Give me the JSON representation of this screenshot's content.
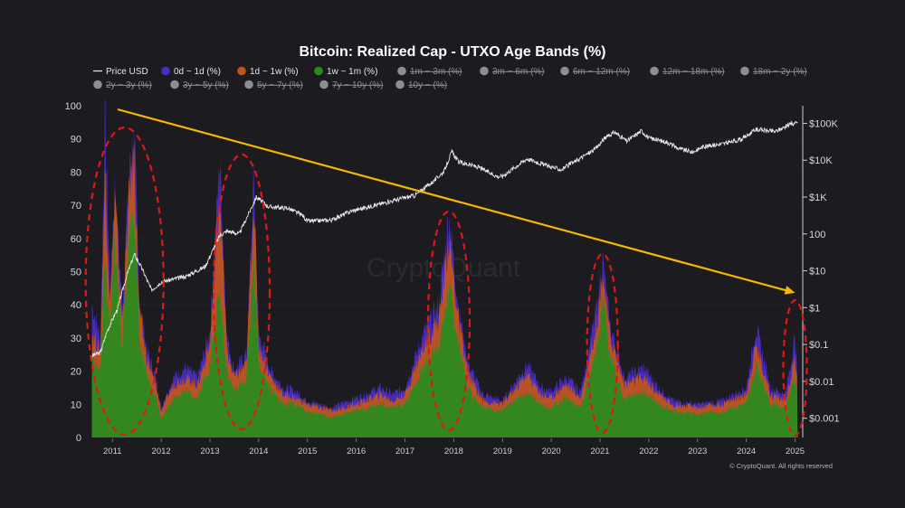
{
  "chart_data": {
    "type": "area",
    "title": "Bitcoin: Realized Cap - UTXO Age Bands (%)",
    "watermark": "CryptoQuant",
    "credit": "© CryptoQuant. All rights reserved",
    "x_ticks": [
      "2011",
      "2012",
      "2013",
      "2014",
      "2015",
      "2016",
      "2017",
      "2018",
      "2019",
      "2020",
      "2021",
      "2022",
      "2023",
      "2024",
      "2025"
    ],
    "y_left": {
      "ticks": [
        "0",
        "10",
        "20",
        "30",
        "40",
        "50",
        "60",
        "70",
        "80",
        "90",
        "100"
      ],
      "range": [
        0,
        100
      ]
    },
    "y_right": {
      "scale": "log",
      "ticks": [
        "$0.001",
        "$0.01",
        "$0.1",
        "$1",
        "$10",
        "100",
        "$1K",
        "$10K",
        "$100K"
      ],
      "range": [
        0.0003,
        300000
      ]
    },
    "legend": [
      {
        "name": "Price USD",
        "color": "#e0e0e0",
        "active": true,
        "kind": "line"
      },
      {
        "name": "0d ~ 1d (%)",
        "color": "#4a2cc0",
        "active": true,
        "kind": "dot"
      },
      {
        "name": "1d ~ 1w (%)",
        "color": "#c0551c",
        "active": true,
        "kind": "dot"
      },
      {
        "name": "1w ~ 1m (%)",
        "color": "#2c8a1e",
        "active": true,
        "kind": "dot"
      },
      {
        "name": "1m ~ 3m (%)",
        "color": "#8d8d93",
        "active": false,
        "kind": "dot"
      },
      {
        "name": "3m ~ 6m (%)",
        "color": "#8d8d93",
        "active": false,
        "kind": "dot"
      },
      {
        "name": "6m ~ 12m (%)",
        "color": "#8d8d93",
        "active": false,
        "kind": "dot"
      },
      {
        "name": "12m ~ 18m (%)",
        "color": "#8d8d93",
        "active": false,
        "kind": "dot"
      },
      {
        "name": "18m ~ 2y (%)",
        "color": "#8d8d93",
        "active": false,
        "kind": "dot"
      },
      {
        "name": "2y ~ 3y (%)",
        "color": "#8d8d93",
        "active": false,
        "kind": "dot"
      },
      {
        "name": "3y ~ 5y (%)",
        "color": "#8d8d93",
        "active": false,
        "kind": "dot"
      },
      {
        "name": "5y ~ 7y (%)",
        "color": "#8d8d93",
        "active": false,
        "kind": "dot"
      },
      {
        "name": "7y ~ 10y (%)",
        "color": "#8d8d93",
        "active": false,
        "kind": "dot"
      },
      {
        "name": "10y ~ (%)",
        "color": "#8d8d93",
        "active": false,
        "kind": "dot"
      }
    ],
    "series": [
      {
        "name": "1w ~ 1m (%)",
        "color": "#2c8a1e",
        "points": [
          [
            2010.58,
            25
          ],
          [
            2010.75,
            20
          ],
          [
            2010.85,
            55
          ],
          [
            2010.95,
            30
          ],
          [
            2011.05,
            60
          ],
          [
            2011.2,
            28
          ],
          [
            2011.35,
            62
          ],
          [
            2011.45,
            70
          ],
          [
            2011.55,
            30
          ],
          [
            2011.7,
            18
          ],
          [
            2011.9,
            12
          ],
          [
            2012.0,
            6
          ],
          [
            2012.25,
            12
          ],
          [
            2012.5,
            14
          ],
          [
            2012.75,
            12
          ],
          [
            2013.0,
            22
          ],
          [
            2013.2,
            45
          ],
          [
            2013.35,
            20
          ],
          [
            2013.5,
            14
          ],
          [
            2013.75,
            18
          ],
          [
            2013.9,
            55
          ],
          [
            2014.0,
            22
          ],
          [
            2014.25,
            14
          ],
          [
            2014.5,
            10
          ],
          [
            2014.75,
            10
          ],
          [
            2015.0,
            8
          ],
          [
            2015.5,
            6
          ],
          [
            2016.0,
            8
          ],
          [
            2016.5,
            10
          ],
          [
            2016.75,
            9
          ],
          [
            2017.0,
            10
          ],
          [
            2017.4,
            22
          ],
          [
            2017.7,
            28
          ],
          [
            2017.9,
            45
          ],
          [
            2018.1,
            28
          ],
          [
            2018.3,
            15
          ],
          [
            2018.6,
            9
          ],
          [
            2019.0,
            8
          ],
          [
            2019.5,
            14
          ],
          [
            2019.8,
            10
          ],
          [
            2020.0,
            9
          ],
          [
            2020.3,
            12
          ],
          [
            2020.6,
            9
          ],
          [
            2020.95,
            28
          ],
          [
            2021.05,
            42
          ],
          [
            2021.2,
            25
          ],
          [
            2021.5,
            12
          ],
          [
            2021.9,
            14
          ],
          [
            2022.2,
            10
          ],
          [
            2022.5,
            8
          ],
          [
            2023.0,
            7
          ],
          [
            2023.5,
            8
          ],
          [
            2024.0,
            10
          ],
          [
            2024.2,
            22
          ],
          [
            2024.5,
            10
          ],
          [
            2024.8,
            9
          ],
          [
            2025.0,
            18
          ],
          [
            2025.05,
            14
          ]
        ]
      },
      {
        "name": "1d ~ 1w (%)",
        "color": "#c0551c",
        "points": [
          [
            2010.58,
            32
          ],
          [
            2010.75,
            25
          ],
          [
            2010.85,
            80
          ],
          [
            2010.95,
            40
          ],
          [
            2011.05,
            72
          ],
          [
            2011.2,
            35
          ],
          [
            2011.35,
            75
          ],
          [
            2011.45,
            85
          ],
          [
            2011.55,
            38
          ],
          [
            2011.7,
            24
          ],
          [
            2011.9,
            15
          ],
          [
            2012.0,
            8
          ],
          [
            2012.25,
            16
          ],
          [
            2012.5,
            18
          ],
          [
            2012.75,
            16
          ],
          [
            2013.0,
            28
          ],
          [
            2013.2,
            75
          ],
          [
            2013.35,
            26
          ],
          [
            2013.5,
            18
          ],
          [
            2013.75,
            22
          ],
          [
            2013.9,
            73
          ],
          [
            2014.0,
            28
          ],
          [
            2014.25,
            18
          ],
          [
            2014.5,
            13
          ],
          [
            2014.75,
            12
          ],
          [
            2015.0,
            10
          ],
          [
            2015.5,
            8
          ],
          [
            2016.0,
            10
          ],
          [
            2016.5,
            13
          ],
          [
            2016.75,
            11
          ],
          [
            2017.0,
            13
          ],
          [
            2017.4,
            28
          ],
          [
            2017.7,
            36
          ],
          [
            2017.9,
            60
          ],
          [
            2018.1,
            35
          ],
          [
            2018.3,
            19
          ],
          [
            2018.6,
            11
          ],
          [
            2019.0,
            10
          ],
          [
            2019.5,
            19
          ],
          [
            2019.8,
            13
          ],
          [
            2020.0,
            12
          ],
          [
            2020.3,
            16
          ],
          [
            2020.6,
            12
          ],
          [
            2020.95,
            36
          ],
          [
            2021.05,
            50
          ],
          [
            2021.2,
            31
          ],
          [
            2021.5,
            16
          ],
          [
            2021.9,
            18
          ],
          [
            2022.2,
            13
          ],
          [
            2022.5,
            10
          ],
          [
            2023.0,
            9
          ],
          [
            2023.5,
            10
          ],
          [
            2024.0,
            13
          ],
          [
            2024.2,
            28
          ],
          [
            2024.5,
            13
          ],
          [
            2024.8,
            11
          ],
          [
            2025.0,
            24
          ],
          [
            2025.05,
            18
          ]
        ]
      },
      {
        "name": "0d ~ 1d (%)",
        "color": "#4a2cc0",
        "points": [
          [
            2010.58,
            40
          ],
          [
            2010.75,
            30
          ],
          [
            2010.85,
            96
          ],
          [
            2010.95,
            45
          ],
          [
            2011.05,
            76
          ],
          [
            2011.2,
            40
          ],
          [
            2011.35,
            80
          ],
          [
            2011.45,
            90
          ],
          [
            2011.55,
            42
          ],
          [
            2011.7,
            27
          ],
          [
            2011.9,
            17
          ],
          [
            2012.0,
            9
          ],
          [
            2012.25,
            18
          ],
          [
            2012.5,
            21
          ],
          [
            2012.75,
            18
          ],
          [
            2013.0,
            32
          ],
          [
            2013.2,
            84
          ],
          [
            2013.35,
            30
          ],
          [
            2013.5,
            20
          ],
          [
            2013.75,
            25
          ],
          [
            2013.9,
            78
          ],
          [
            2014.0,
            31
          ],
          [
            2014.25,
            20
          ],
          [
            2014.5,
            15
          ],
          [
            2014.75,
            14
          ],
          [
            2015.0,
            11
          ],
          [
            2015.5,
            9
          ],
          [
            2016.0,
            12
          ],
          [
            2016.5,
            15
          ],
          [
            2016.75,
            13
          ],
          [
            2017.0,
            15
          ],
          [
            2017.4,
            32
          ],
          [
            2017.7,
            40
          ],
          [
            2017.9,
            67
          ],
          [
            2018.1,
            39
          ],
          [
            2018.3,
            22
          ],
          [
            2018.6,
            13
          ],
          [
            2019.0,
            11
          ],
          [
            2019.5,
            22
          ],
          [
            2019.8,
            15
          ],
          [
            2020.0,
            14
          ],
          [
            2020.3,
            18
          ],
          [
            2020.6,
            14
          ],
          [
            2020.95,
            40
          ],
          [
            2021.05,
            54
          ],
          [
            2021.2,
            34
          ],
          [
            2021.5,
            18
          ],
          [
            2021.9,
            21
          ],
          [
            2022.2,
            15
          ],
          [
            2022.5,
            11
          ],
          [
            2023.0,
            10
          ],
          [
            2023.5,
            11
          ],
          [
            2024.0,
            15
          ],
          [
            2024.2,
            33
          ],
          [
            2024.5,
            15
          ],
          [
            2024.8,
            13
          ],
          [
            2025.0,
            30
          ],
          [
            2025.05,
            20
          ]
        ]
      }
    ],
    "price_usd": [
      [
        2010.58,
        0.05
      ],
      [
        2010.75,
        0.06
      ],
      [
        2010.9,
        0.25
      ],
      [
        2011.1,
        0.9
      ],
      [
        2011.3,
        8
      ],
      [
        2011.45,
        28
      ],
      [
        2011.6,
        12
      ],
      [
        2011.8,
        3
      ],
      [
        2012.0,
        5
      ],
      [
        2012.5,
        7
      ],
      [
        2012.9,
        13
      ],
      [
        2013.2,
        90
      ],
      [
        2013.35,
        120
      ],
      [
        2013.6,
        100
      ],
      [
        2013.95,
        1000
      ],
      [
        2014.2,
        550
      ],
      [
        2014.6,
        500
      ],
      [
        2014.9,
        320
      ],
      [
        2015.0,
        220
      ],
      [
        2015.5,
        240
      ],
      [
        2015.9,
        420
      ],
      [
        2016.5,
        650
      ],
      [
        2016.9,
        900
      ],
      [
        2017.2,
        1100
      ],
      [
        2017.6,
        2800
      ],
      [
        2017.8,
        5000
      ],
      [
        2017.96,
        17000
      ],
      [
        2018.1,
        9000
      ],
      [
        2018.5,
        6500
      ],
      [
        2018.9,
        3600
      ],
      [
        2019.0,
        3700
      ],
      [
        2019.5,
        11000
      ],
      [
        2019.9,
        7200
      ],
      [
        2020.2,
        5500
      ],
      [
        2020.5,
        9500
      ],
      [
        2020.9,
        20000
      ],
      [
        2021.1,
        40000
      ],
      [
        2021.3,
        58000
      ],
      [
        2021.55,
        33000
      ],
      [
        2021.85,
        63000
      ],
      [
        2022.0,
        40000
      ],
      [
        2022.4,
        30000
      ],
      [
        2022.6,
        21000
      ],
      [
        2022.9,
        16500
      ],
      [
        2023.1,
        23000
      ],
      [
        2023.6,
        29000
      ],
      [
        2023.9,
        37000
      ],
      [
        2024.2,
        68000
      ],
      [
        2024.6,
        60000
      ],
      [
        2024.9,
        95000
      ],
      [
        2025.05,
        102000
      ]
    ],
    "annotations": {
      "trend_arrow": {
        "color": "#f5b800",
        "from": [
          2010.55,
          100
        ],
        "to": [
          2025.0,
          42
        ]
      },
      "ellipses_color": "#e01818",
      "highlighted_peaks": [
        2011.35,
        2013.6,
        2017.9,
        2021.05,
        2025.0
      ]
    }
  }
}
